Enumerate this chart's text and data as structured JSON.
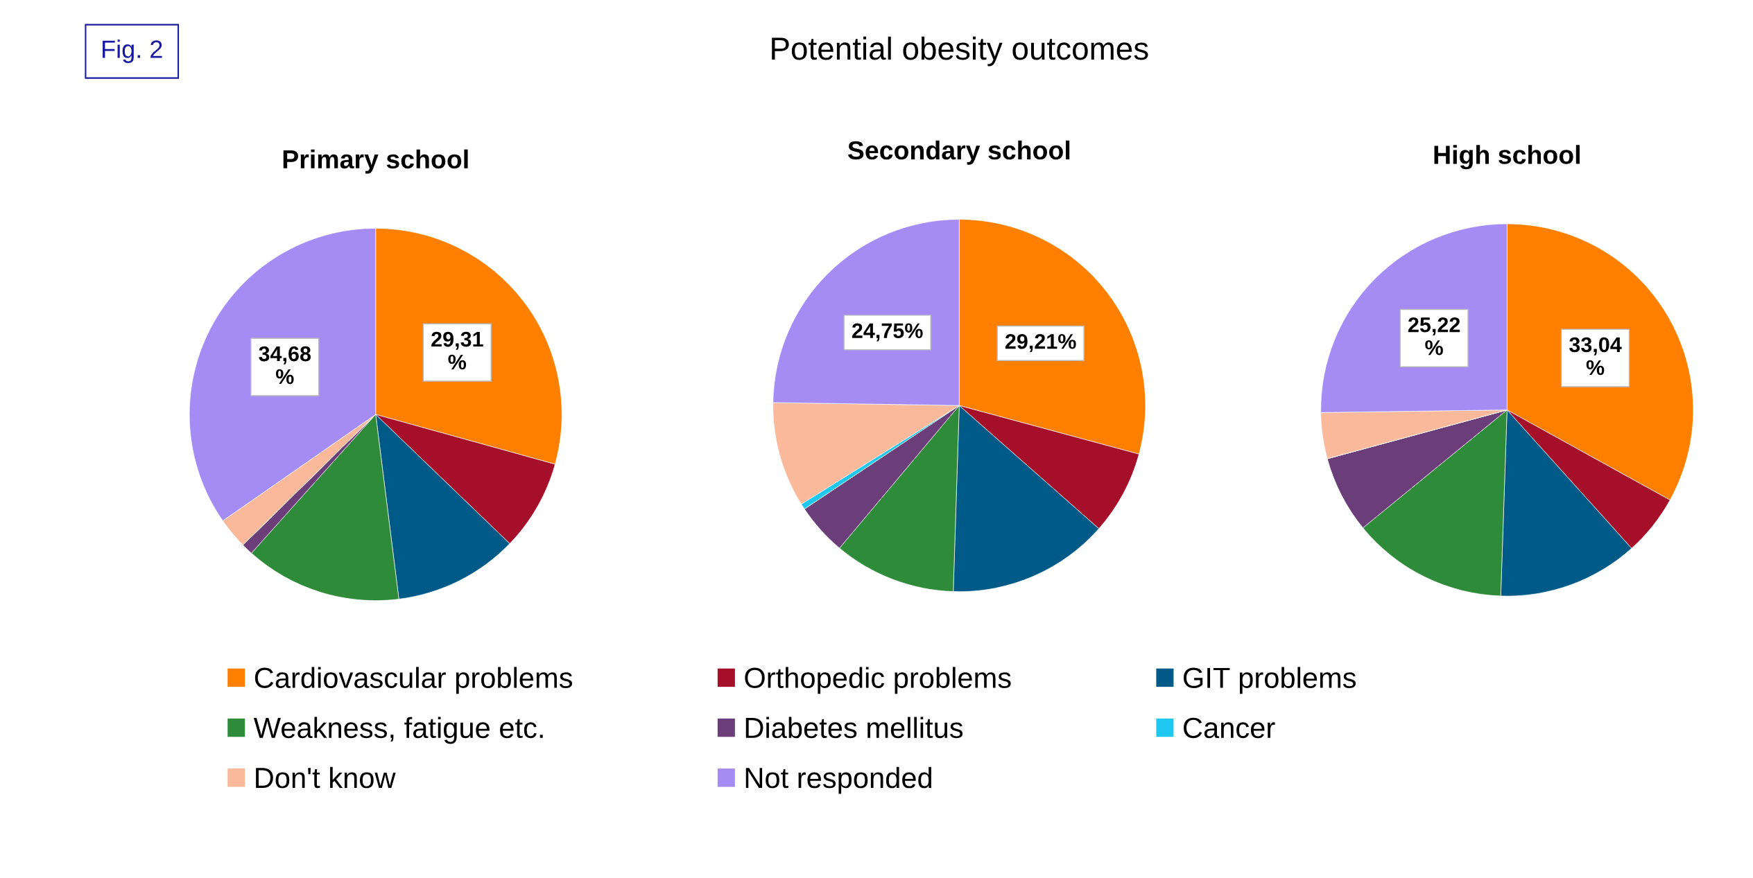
{
  "chart_data": [
    {
      "type": "pie",
      "title": "Primary school",
      "annotations": [
        "Fig. 2",
        "Potential obesity outcomes"
      ],
      "legend": "bottom",
      "categories": [
        "Cardiovascular problems",
        "Orthopedic problems",
        "GIT problems",
        "Weakness, fatigue etc.",
        "Diabetes mellitus",
        "Cancer",
        "Don't know",
        "Not responded"
      ],
      "values": [
        29.31,
        7.9,
        10.8,
        13.61,
        1.0,
        0,
        2.7,
        34.68
      ],
      "colors": [
        "#ff7f00",
        "#a50f2a",
        "#005a87",
        "#2e8b3a",
        "#6b3e7a",
        "#1ec8f0",
        "#f9b99a",
        "#a58cf5"
      ],
      "value_labels": [
        "29,31\n%",
        null,
        null,
        null,
        null,
        null,
        null,
        "34,68\n%"
      ]
    },
    {
      "type": "pie",
      "title": "Secondary school",
      "values": [
        29.21,
        7.3,
        14.0,
        10.6,
        4.5,
        0.5,
        9.14,
        24.75
      ],
      "colors": [
        "#ff7f00",
        "#a50f2a",
        "#005a87",
        "#2e8b3a",
        "#6b3e7a",
        "#1ec8f0",
        "#f9b99a",
        "#a58cf5"
      ],
      "value_labels": [
        "29,21%",
        null,
        null,
        null,
        null,
        null,
        null,
        "24,75%"
      ]
    },
    {
      "type": "pie",
      "title": "High school",
      "values": [
        33.04,
        5.3,
        12.2,
        13.54,
        6.7,
        0,
        4.0,
        25.22
      ],
      "colors": [
        "#ff7f00",
        "#a50f2a",
        "#005a87",
        "#2e8b3a",
        "#6b3e7a",
        "#1ec8f0",
        "#f9b99a",
        "#a58cf5"
      ],
      "value_labels": [
        "33,04\n%",
        null,
        null,
        null,
        null,
        null,
        null,
        "25,22\n%"
      ]
    }
  ]
}
